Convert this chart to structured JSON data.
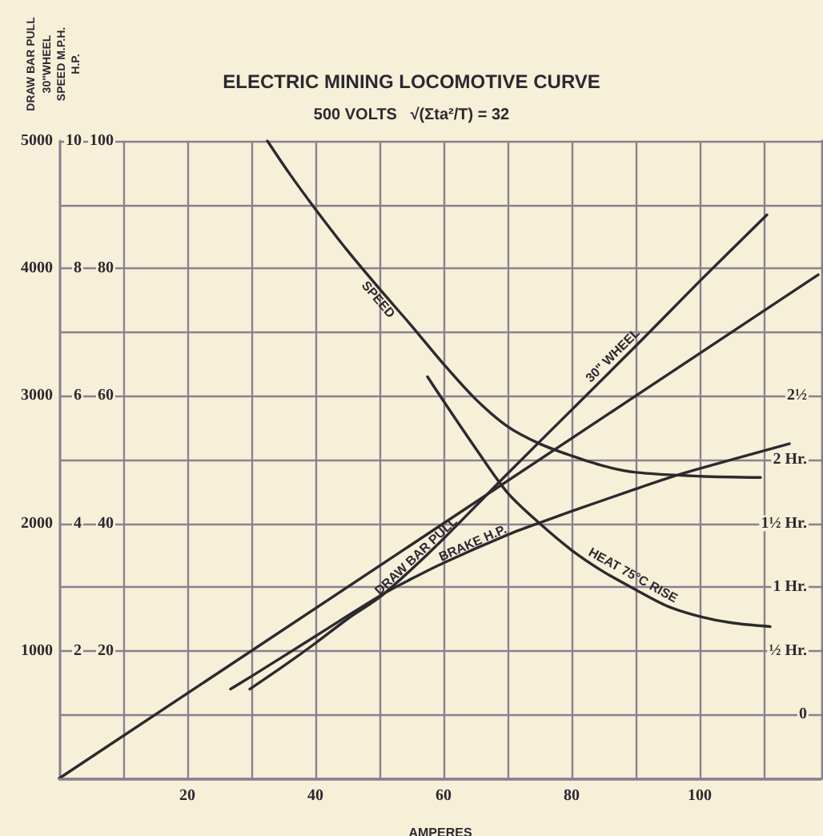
{
  "chart_data": [
    {
      "type": "line",
      "title": "ELECTRIC MINING LOCOMOTIVE CURVE",
      "subtitle": "500 VOLTS   √(Σta²/T) = 32",
      "xlabel": "AMPERES",
      "ylabel": "DRAW BAR PULL\n30\"WHEEL",
      "y2label": "SPEED M.P.H.",
      "y3label": "H.P.",
      "xlim": [
        0,
        119
      ],
      "xticks": [
        {
          "value": 10,
          "label": null
        },
        20,
        {
          "value": 30,
          "label": null
        },
        40,
        {
          "value": 50,
          "label": null
        },
        60,
        {
          "value": 70,
          "label": null
        },
        80,
        {
          "value": 90,
          "label": null
        },
        100,
        {
          "value": 110,
          "label": null
        }
      ],
      "ylim": [
        0,
        5000
      ],
      "yticks": [
        {
          "value": 500,
          "label": null
        },
        1000,
        {
          "value": 1500,
          "label": null
        },
        2000,
        {
          "value": 2500,
          "label": null
        },
        3000,
        {
          "value": 3500,
          "label": null
        },
        4000,
        {
          "value": 4500,
          "label": null
        },
        5000
      ],
      "y2lim": [
        0,
        10
      ],
      "y2ticks": [
        2,
        4,
        6,
        8,
        10
      ],
      "y3lim": [
        0,
        100
      ],
      "y3ticks": [
        20,
        40,
        60,
        80,
        100
      ],
      "grid": true,
      "marker": "none",
      "line_style": "solid",
      "annotations": [
        "30\" WHEEL"
      ],
      "series": [
        {
          "name": "SPEED",
          "color": "#2b2a2e",
          "axis": "y2",
          "x": [
            32.5,
            36,
            40,
            45,
            50,
            55,
            60,
            65,
            70,
            75,
            80,
            85,
            90,
            100,
            109.5
          ],
          "values": [
            10,
            9.48,
            8.93,
            8.28,
            7.68,
            7.1,
            6.5,
            5.95,
            5.52,
            5.25,
            5.06,
            4.9,
            4.8,
            4.74,
            4.72
          ]
        },
        {
          "name": "DRAW BAR PULL",
          "color": "#2b2a2e",
          "x": [
            29.75,
            35,
            40,
            45,
            50,
            55,
            60,
            70,
            80,
            90,
            100,
            110.5
          ],
          "values": [
            700,
            880,
            1060,
            1250,
            1420,
            1640,
            1880,
            2390,
            2890,
            3390,
            3900,
            4420
          ]
        },
        {
          "name": "BRAKE H.P.",
          "color": "#2b2a2e",
          "axis": "y3",
          "x": [
            26.75,
            30,
            40,
            50,
            55,
            60,
            70,
            75,
            80,
            90,
            95,
            100,
            114
          ],
          "values": [
            14,
            16,
            22.3,
            28.6,
            31.3,
            33.8,
            38.2,
            40.1,
            41.9,
            45.4,
            47.1,
            48.6,
            52.5
          ]
        },
        {
          "color": "#2b2a2e",
          "axis": "y3",
          "x": [
            0,
            118.5
          ],
          "values": [
            0,
            79
          ]
        }
      ]
    },
    {
      "type": "line",
      "xlim": [
        0,
        119
      ],
      "ylim": [
        -0.5,
        4.5
      ],
      "yticks": [
        0,
        {
          "value": 0.5,
          "label": "½ Hr."
        },
        {
          "value": 1,
          "label": "1 Hr."
        },
        {
          "value": 1.5,
          "label": "1½ Hr."
        },
        {
          "value": 2,
          "label": "2 Hr."
        },
        {
          "value": 2.5,
          "label": "2½"
        }
      ],
      "tick_labels": "y",
      "marker": "none",
      "line_style": "solid",
      "series": [
        {
          "name": "HEAT 75°C RISE",
          "color": "#2b2a2e",
          "x": [
            57.5,
            60,
            65,
            70,
            75,
            80,
            85,
            90,
            95,
            100,
            105,
            111
          ],
          "values": [
            2.65,
            2.46,
            2.09,
            1.74,
            1.5,
            1.29,
            1.12,
            0.98,
            0.85,
            0.77,
            0.72,
            0.69
          ]
        }
      ]
    }
  ]
}
